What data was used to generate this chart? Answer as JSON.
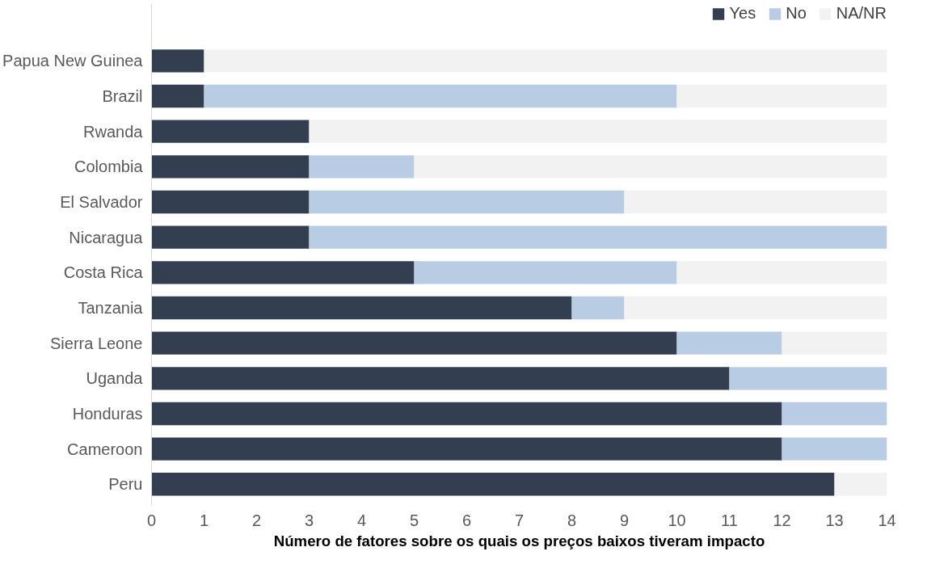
{
  "chart_data": {
    "type": "bar",
    "orientation": "horizontal",
    "stacked": true,
    "xlabel": "Número de fatores sobre os quais os preços baixos tiveram impacto",
    "categories": [
      "Papua New Guinea",
      "Brazil",
      "Rwanda",
      "Colombia",
      "El Salvador",
      "Nicaragua",
      "Costa Rica",
      "Tanzania",
      "Sierra Leone",
      "Uganda",
      "Honduras",
      "Cameroon",
      "Peru"
    ],
    "series": [
      {
        "name": "Yes",
        "color": "#333f50",
        "values": [
          1,
          1,
          3,
          3,
          3,
          3,
          5,
          8,
          10,
          11,
          12,
          12,
          13
        ]
      },
      {
        "name": "No",
        "color": "#b8cce4",
        "values": [
          0,
          9,
          0,
          2,
          6,
          11,
          5,
          1,
          2,
          3,
          2,
          2,
          0
        ]
      },
      {
        "name": "NA/NR",
        "color": "#f2f2f2",
        "values": [
          13,
          4,
          11,
          9,
          5,
          0,
          4,
          5,
          2,
          0,
          0,
          0,
          1
        ]
      }
    ],
    "xlim": [
      0,
      14
    ],
    "xticks": [
      0,
      1,
      2,
      3,
      4,
      5,
      6,
      7,
      8,
      9,
      10,
      11,
      12,
      13,
      14
    ],
    "grid": false,
    "legend": "top right"
  }
}
